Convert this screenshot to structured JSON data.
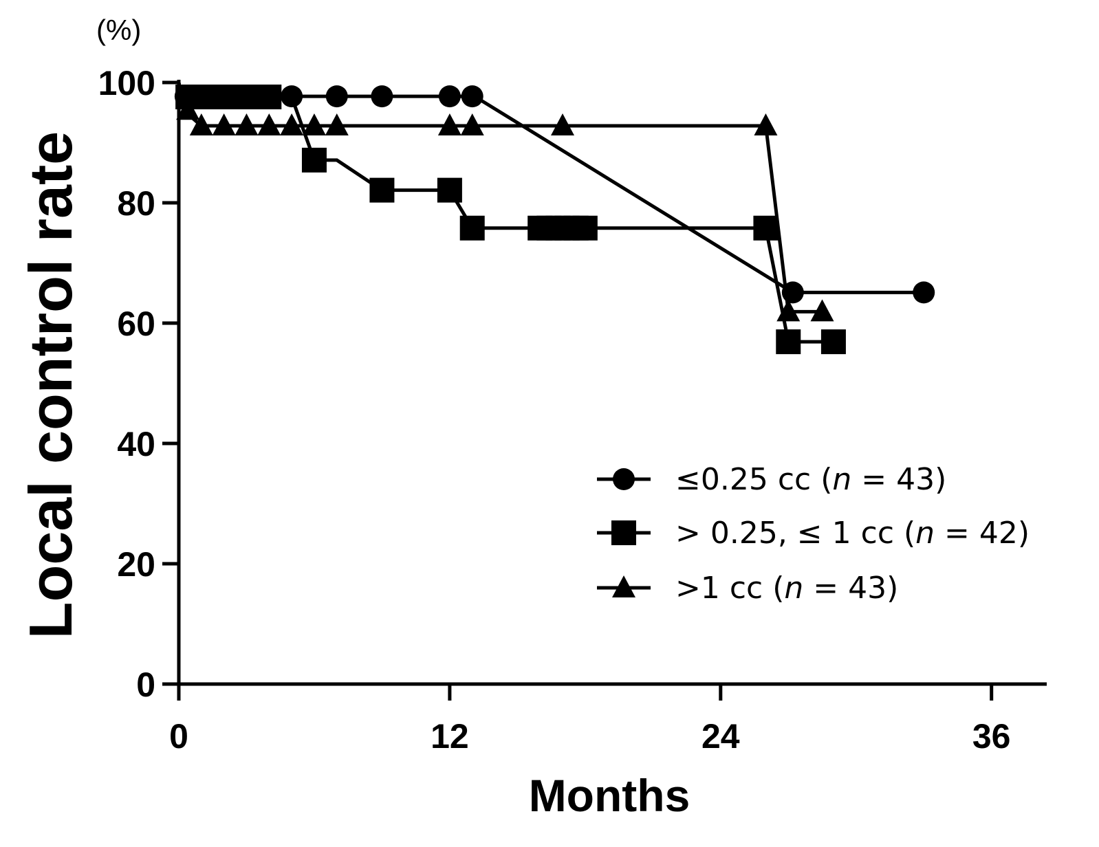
{
  "chart_data": {
    "type": "line",
    "title": "",
    "xlabel": "Months",
    "ylabel": "Local control rate",
    "y_unit": "(%)",
    "xlim": [
      0,
      40
    ],
    "ylim": [
      0,
      100
    ],
    "x_ticks": [
      0,
      12,
      24,
      36
    ],
    "y_ticks": [
      0,
      20,
      40,
      60,
      80,
      100
    ],
    "legend_position": "lower-right",
    "series": [
      {
        "name": "≤0.25 cc (n = 43)",
        "legend_parts": [
          "≤0.25 cc (",
          "n",
          " = 43)"
        ],
        "marker": "circle",
        "steps": [
          [
            0,
            100
          ],
          [
            0.1,
            97.7
          ],
          [
            13.1,
            97.7
          ],
          [
            27.2,
            65.1
          ],
          [
            33.0,
            65.1
          ]
        ],
        "markers": [
          [
            0.3,
            97.7
          ],
          [
            0.7,
            97.7
          ],
          [
            1.1,
            97.7
          ],
          [
            1.5,
            97.7
          ],
          [
            1.9,
            97.7
          ],
          [
            2.3,
            97.7
          ],
          [
            2.7,
            97.7
          ],
          [
            3.1,
            97.7
          ],
          [
            3.5,
            97.7
          ],
          [
            3.9,
            97.7
          ],
          [
            5.0,
            97.7
          ],
          [
            7.0,
            97.7
          ],
          [
            9.0,
            97.7
          ],
          [
            12.0,
            97.7
          ],
          [
            13.0,
            97.7
          ],
          [
            27.2,
            65.1
          ],
          [
            33.0,
            65.1
          ]
        ]
      },
      {
        "name": "> 0.25,  ≤ 1 cc (n = 42)",
        "legend_parts": [
          "> 0.25,  ≤ 1 cc (",
          "n",
          " = 42)"
        ],
        "marker": "square",
        "steps": [
          [
            0,
            100
          ],
          [
            0.1,
            97.6
          ],
          [
            5.0,
            97.6
          ],
          [
            6.0,
            87.1
          ],
          [
            7.0,
            87.1
          ],
          [
            9.0,
            82.1
          ],
          [
            12.0,
            82.1
          ],
          [
            13.0,
            75.8
          ],
          [
            26.0,
            75.8
          ],
          [
            27.0,
            56.9
          ],
          [
            29.0,
            56.9
          ]
        ],
        "markers": [
          [
            0.4,
            97.6
          ],
          [
            0.8,
            97.6
          ],
          [
            1.2,
            97.6
          ],
          [
            1.6,
            97.6
          ],
          [
            2.0,
            97.6
          ],
          [
            2.4,
            97.6
          ],
          [
            2.8,
            97.6
          ],
          [
            3.2,
            97.6
          ],
          [
            3.6,
            97.6
          ],
          [
            4.0,
            97.6
          ],
          [
            6.0,
            87.1
          ],
          [
            9.0,
            82.1
          ],
          [
            12.0,
            82.1
          ],
          [
            13.0,
            75.8
          ],
          [
            16.0,
            75.8
          ],
          [
            16.4,
            75.8
          ],
          [
            16.8,
            75.8
          ],
          [
            17.2,
            75.8
          ],
          [
            17.6,
            75.8
          ],
          [
            18.0,
            75.8
          ],
          [
            26.0,
            75.8
          ],
          [
            27.0,
            56.9
          ],
          [
            29.0,
            56.9
          ]
        ]
      },
      {
        "name": ">1 cc (n = 43)",
        "legend_parts": [
          ">1 cc (",
          "n",
          " = 43)"
        ],
        "marker": "triangle",
        "steps": [
          [
            0,
            100
          ],
          [
            0.2,
            95.4
          ],
          [
            1.0,
            92.8
          ],
          [
            26.0,
            92.8
          ],
          [
            27.0,
            61.9
          ],
          [
            28.5,
            61.9
          ]
        ],
        "markers": [
          [
            0.4,
            95.4
          ],
          [
            1.0,
            92.8
          ],
          [
            2.0,
            92.8
          ],
          [
            3.0,
            92.8
          ],
          [
            4.0,
            92.8
          ],
          [
            5.0,
            92.8
          ],
          [
            6.0,
            92.8
          ],
          [
            7.0,
            92.8
          ],
          [
            12.0,
            92.8
          ],
          [
            13.0,
            92.8
          ],
          [
            17.0,
            92.8
          ],
          [
            26.0,
            92.8
          ],
          [
            27.0,
            61.9
          ],
          [
            28.5,
            61.9
          ]
        ]
      }
    ]
  }
}
